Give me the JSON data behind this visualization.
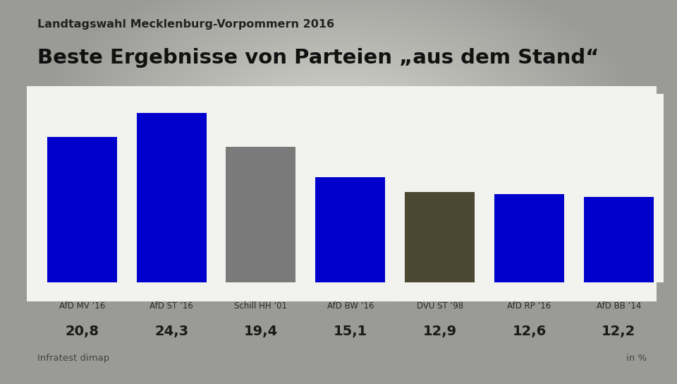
{
  "title_top": "Landtagswahl Mecklenburg-Vorpommern 2016",
  "title_main": "Beste Ergebnisse von Parteien „aus dem Stand“",
  "categories": [
    "AfD MV ’16",
    "AfD ST ’16",
    "Schill HH ’01",
    "AfD BW ’16",
    "DVU ST ’98",
    "AfD RP ’16",
    "AfD BB ’14"
  ],
  "values": [
    20.8,
    24.3,
    19.4,
    15.1,
    12.9,
    12.6,
    12.2
  ],
  "value_labels": [
    "20,8",
    "24,3",
    "19,4",
    "15,1",
    "12,9",
    "12,6",
    "12,2"
  ],
  "bar_colors": [
    "#0000cc",
    "#0000cc",
    "#7a7a7a",
    "#0000cc",
    "#4a4830",
    "#0000cc",
    "#0000cc"
  ],
  "bg_outer": "#9a9a9a",
  "bg_inner": "#d8d8d0",
  "chart_bg": "#f0f0ec",
  "source_text": "Infratest dimap",
  "unit_text": "in %",
  "ylim": [
    0,
    27
  ]
}
